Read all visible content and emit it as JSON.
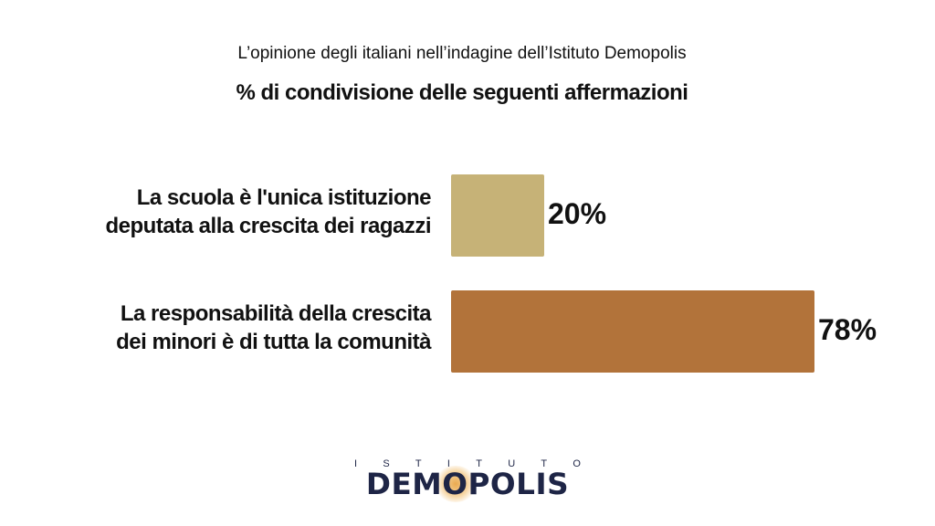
{
  "header": {
    "subtitle": "L’opinione degli italiani nell’indagine dell’Istituto Demopolis",
    "title": "% di condivisione delle seguenti affermazioni"
  },
  "chart_data": {
    "type": "bar",
    "orientation": "horizontal",
    "title": "% di condivisione delle seguenti affermazioni",
    "subtitle": "L’opinione degli italiani nell’indagine dell’Istituto Demopolis",
    "categories": [
      [
        "La scuola è l'unica istituzione",
        "deputata alla crescita dei ragazzi"
      ],
      [
        "La responsabilità della crescita",
        "dei minori è di tutta la comunità"
      ]
    ],
    "values": [
      20,
      78
    ],
    "value_labels": [
      "20%",
      "78%"
    ],
    "colors": [
      "#c6b277",
      "#b2733a"
    ],
    "xlim": [
      0,
      100
    ],
    "grid": false,
    "legend": "none"
  },
  "logo": {
    "top_text": [
      "I",
      "S",
      "T",
      "I",
      "T",
      "U",
      "T",
      "O"
    ],
    "main_text": "DEMOPOLIS"
  }
}
